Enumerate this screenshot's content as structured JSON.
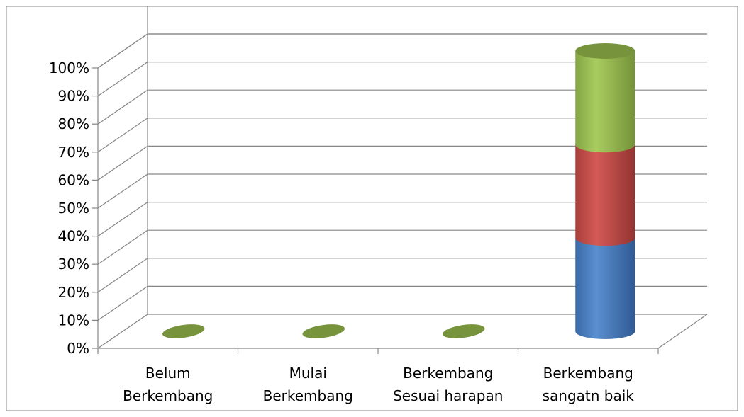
{
  "chart_data": {
    "type": "bar",
    "stacked": true,
    "style": "3d-cylinder",
    "title": "",
    "xlabel": "",
    "ylabel": "",
    "ylim": [
      0,
      100
    ],
    "yticks": [
      "0%",
      "10%",
      "20%",
      "30%",
      "40%",
      "50%",
      "60%",
      "70%",
      "80%",
      "90%",
      "100%"
    ],
    "categories": [
      [
        "Belum",
        "Berkembang"
      ],
      [
        "Mulai",
        "Berkembang"
      ],
      [
        "Berkembang",
        "Sesuai harapan"
      ],
      [
        "Berkembang",
        "sangatn baik"
      ]
    ],
    "series": [
      {
        "color": "#4a7ebb",
        "values": [
          0,
          0,
          0,
          33.3
        ]
      },
      {
        "color": "#be4b48",
        "values": [
          0,
          0,
          0,
          33.3
        ]
      },
      {
        "color": "#98b954",
        "values": [
          0,
          0,
          0,
          33.4
        ]
      }
    ],
    "grid": true,
    "legend": "none"
  }
}
